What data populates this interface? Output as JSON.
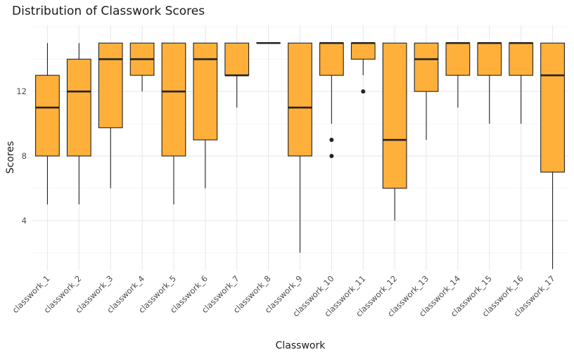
{
  "chart_data": {
    "type": "boxplot",
    "title": "Distribution of Classwork Scores",
    "xlabel": "Classwork",
    "ylabel": "Scores",
    "ylim": [
      0.9,
      16.1
    ],
    "yticks": [
      4,
      8,
      12
    ],
    "grid": true,
    "box_fill": "#FFB03B",
    "box_stroke": "#222222",
    "categories": [
      "classwork_1",
      "classwork_2",
      "classwork_3",
      "classwork_4",
      "classwork_5",
      "classwork_6",
      "classwork_7",
      "classwork_8",
      "classwork_9",
      "classwork_10",
      "classwork_11",
      "classwork_12",
      "classwork_13",
      "classwork_14",
      "classwork_15",
      "classwork_16",
      "classwork_17"
    ],
    "boxes": [
      {
        "min": 5,
        "q1": 8,
        "median": 11,
        "q3": 13,
        "max": 15,
        "outliers": []
      },
      {
        "min": 5,
        "q1": 8,
        "median": 12,
        "q3": 14,
        "max": 15,
        "outliers": []
      },
      {
        "min": 6,
        "q1": 9.75,
        "median": 14,
        "q3": 15,
        "max": 15,
        "outliers": []
      },
      {
        "min": 12,
        "q1": 13,
        "median": 14,
        "q3": 15,
        "max": 15,
        "outliers": []
      },
      {
        "min": 5,
        "q1": 8,
        "median": 12,
        "q3": 15,
        "max": 15,
        "outliers": []
      },
      {
        "min": 6,
        "q1": 9,
        "median": 14,
        "q3": 15,
        "max": 15,
        "outliers": []
      },
      {
        "min": 11,
        "q1": 13,
        "median": 13,
        "q3": 15,
        "max": 15,
        "outliers": []
      },
      {
        "min": 15,
        "q1": 15,
        "median": 15,
        "q3": 15,
        "max": 15,
        "outliers": []
      },
      {
        "min": 2,
        "q1": 8,
        "median": 11,
        "q3": 15,
        "max": 15,
        "outliers": []
      },
      {
        "min": 10,
        "q1": 13,
        "median": 15,
        "q3": 15,
        "max": 15,
        "outliers": [
          9,
          8
        ]
      },
      {
        "min": 13,
        "q1": 14,
        "median": 15,
        "q3": 15,
        "max": 15,
        "outliers": [
          12
        ]
      },
      {
        "min": 4,
        "q1": 6,
        "median": 9,
        "q3": 15,
        "max": 15,
        "outliers": []
      },
      {
        "min": 9,
        "q1": 12,
        "median": 14,
        "q3": 15,
        "max": 15,
        "outliers": []
      },
      {
        "min": 11,
        "q1": 13,
        "median": 15,
        "q3": 15,
        "max": 15,
        "outliers": []
      },
      {
        "min": 10,
        "q1": 13,
        "median": 15,
        "q3": 15,
        "max": 15,
        "outliers": []
      },
      {
        "min": 10,
        "q1": 13,
        "median": 15,
        "q3": 15,
        "max": 15,
        "outliers": []
      },
      {
        "min": 1,
        "q1": 7,
        "median": 13,
        "q3": 15,
        "max": 15,
        "outliers": []
      }
    ]
  }
}
